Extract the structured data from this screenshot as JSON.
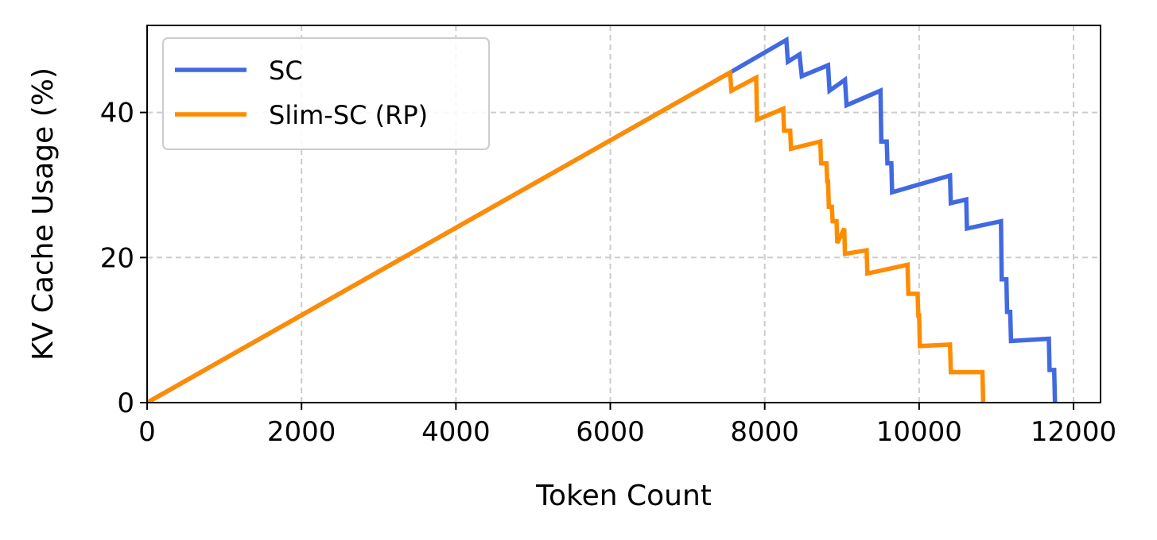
{
  "chart_data": {
    "type": "line",
    "title": "",
    "xlabel": "Token Count",
    "ylabel": "KV Cache Usage (%)",
    "xlim": [
      0,
      12350
    ],
    "ylim": [
      0,
      52
    ],
    "x_ticks": [
      0,
      2000,
      4000,
      6000,
      8000,
      10000,
      12000
    ],
    "x_tick_labels": [
      "0",
      "2000",
      "4000",
      "6000",
      "8000",
      "10000",
      "12000"
    ],
    "y_ticks": [
      0,
      20,
      40
    ],
    "y_tick_labels": [
      "0",
      "20",
      "40"
    ],
    "grid": true,
    "legend_position": "top-left",
    "series": [
      {
        "name": "SC",
        "color": "#4169E1",
        "points": [
          [
            0,
            0
          ],
          [
            7550,
            45.5
          ],
          [
            8280,
            50
          ],
          [
            8300,
            47
          ],
          [
            8450,
            48
          ],
          [
            8480,
            45
          ],
          [
            8820,
            46.5
          ],
          [
            8840,
            43
          ],
          [
            9040,
            44.5
          ],
          [
            9060,
            41
          ],
          [
            9500,
            43
          ],
          [
            9510,
            36
          ],
          [
            9580,
            36
          ],
          [
            9590,
            33
          ],
          [
            9640,
            33
          ],
          [
            9650,
            29
          ],
          [
            10400,
            31.3
          ],
          [
            10410,
            27.5
          ],
          [
            10610,
            28
          ],
          [
            10620,
            24
          ],
          [
            11060,
            25
          ],
          [
            11070,
            17
          ],
          [
            11130,
            17
          ],
          [
            11140,
            12.5
          ],
          [
            11180,
            12.5
          ],
          [
            11190,
            8.5
          ],
          [
            11680,
            8.8
          ],
          [
            11690,
            4.5
          ],
          [
            11750,
            4.5
          ],
          [
            11760,
            0
          ]
        ]
      },
      {
        "name": "Slim-SC (RP)",
        "color": "#FF8C00",
        "points": [
          [
            0,
            0
          ],
          [
            7550,
            45.5
          ],
          [
            7570,
            43
          ],
          [
            7890,
            44.8
          ],
          [
            7900,
            39
          ],
          [
            8240,
            40.5
          ],
          [
            8250,
            37.5
          ],
          [
            8330,
            37.5
          ],
          [
            8340,
            35
          ],
          [
            8720,
            36
          ],
          [
            8730,
            33
          ],
          [
            8800,
            33
          ],
          [
            8810,
            30.5
          ],
          [
            8820,
            30.5
          ],
          [
            8830,
            27
          ],
          [
            8870,
            27
          ],
          [
            8880,
            25
          ],
          [
            8930,
            25
          ],
          [
            8940,
            22
          ],
          [
            9030,
            24
          ],
          [
            9040,
            20.5
          ],
          [
            9320,
            21
          ],
          [
            9330,
            17.8
          ],
          [
            9850,
            19
          ],
          [
            9860,
            15
          ],
          [
            9980,
            15
          ],
          [
            9990,
            12
          ],
          [
            10000,
            12
          ],
          [
            10010,
            7.8
          ],
          [
            10400,
            8
          ],
          [
            10410,
            4.2
          ],
          [
            10820,
            4.2
          ],
          [
            10830,
            0
          ]
        ]
      }
    ]
  }
}
